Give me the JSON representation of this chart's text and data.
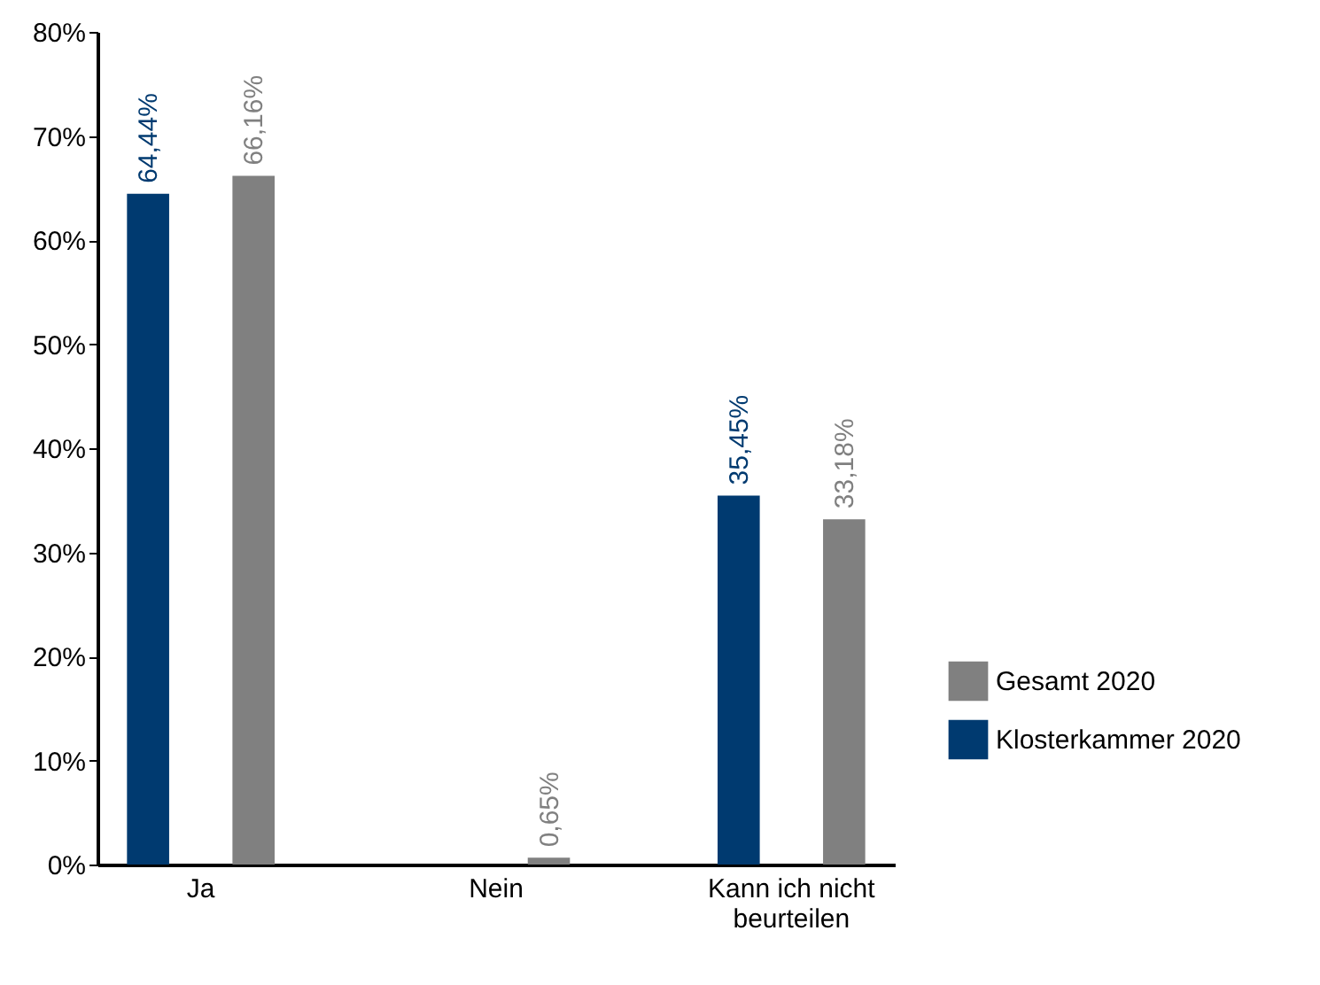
{
  "chart_data": {
    "type": "bar",
    "categories": [
      "Ja",
      "Nein",
      "Kann ich nicht beurteilen"
    ],
    "series": [
      {
        "name": "Klosterkammer 2020",
        "color": "#003a70",
        "values": [
          64.44,
          0,
          35.45
        ],
        "value_labels": [
          "64,44%",
          null,
          "35,45%"
        ]
      },
      {
        "name": "Gesamt 2020",
        "color": "#808080",
        "values": [
          66.16,
          0.65,
          33.18
        ],
        "value_labels": [
          "66,16%",
          "0,65%",
          "33,18%"
        ]
      }
    ],
    "ylim": [
      0,
      80
    ],
    "yticks": [
      {
        "value": 0,
        "label": "0%"
      },
      {
        "value": 10,
        "label": "10%"
      },
      {
        "value": 20,
        "label": "20%"
      },
      {
        "value": 30,
        "label": "30%"
      },
      {
        "value": 40,
        "label": "40%"
      },
      {
        "value": 50,
        "label": "50%"
      },
      {
        "value": 60,
        "label": "60%"
      },
      {
        "value": 70,
        "label": "70%"
      },
      {
        "value": 80,
        "label": "80%"
      }
    ],
    "grid": false,
    "legend": "right"
  }
}
